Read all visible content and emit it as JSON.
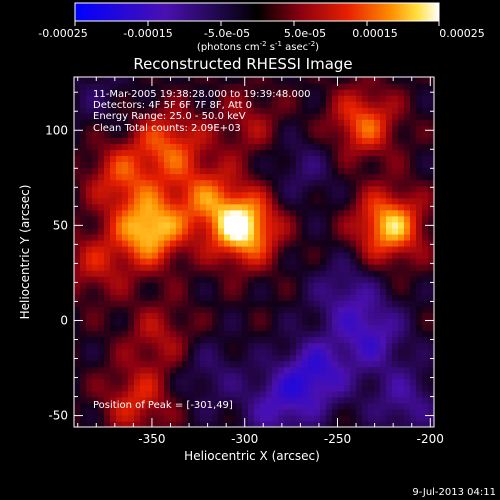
{
  "colorbar": {
    "ticks": [
      "-0.00025",
      "-0.00015",
      "-5.0e-05",
      "5.0e-05",
      "0.00015",
      "0.00025"
    ],
    "units_main": "(photons cm",
    "units_exp1": "-2",
    "units_mid": " s",
    "units_exp2": "-1",
    "units_end": " asec",
    "units_exp3": "-2",
    "units_close": ")",
    "range": [
      -0.00025,
      0.00025
    ]
  },
  "chart_data": {
    "type": "heatmap",
    "title": "Reconstructed RHESSI Image",
    "xlabel": "Heliocentric X (arcsec)",
    "ylabel": "Heliocentric Y (arcsec)",
    "xlim": [
      -392,
      -198
    ],
    "ylim": [
      -56,
      128
    ],
    "xticks": [
      -350,
      -300,
      -250,
      -200
    ],
    "yticks": [
      -50,
      0,
      50,
      100
    ],
    "xtick_labels": [
      "-350",
      "-300",
      "-250",
      "-200"
    ],
    "ytick_labels": [
      "-50",
      "0",
      "50",
      "100"
    ],
    "colormap": "blue-purple-red-orange-yellow-white",
    "peak": [
      -301,
      49
    ],
    "sources": [
      {
        "x": -351,
        "y": 48,
        "intensity": 0.00022
      },
      {
        "x": -367,
        "y": 76,
        "intensity": 0.00012
      },
      {
        "x": -341,
        "y": 93,
        "intensity": 0.00014
      },
      {
        "x": -301,
        "y": 49,
        "intensity": 0.00025
      },
      {
        "x": -322,
        "y": 66,
        "intensity": 0.00012
      },
      {
        "x": -222,
        "y": 50,
        "intensity": 0.00021
      },
      {
        "x": -236,
        "y": 104,
        "intensity": 0.00015
      },
      {
        "x": -298,
        "y": 104,
        "intensity": 7e-05
      },
      {
        "x": -380,
        "y": 30,
        "intensity": 9e-05
      },
      {
        "x": -346,
        "y": -8,
        "intensity": 8e-05
      },
      {
        "x": -358,
        "y": -42,
        "intensity": 0.00011
      },
      {
        "x": -262,
        "y": -28,
        "intensity": -0.00016
      },
      {
        "x": -232,
        "y": -8,
        "intensity": -0.00013
      },
      {
        "x": -282,
        "y": -45,
        "intensity": -0.00012
      },
      {
        "x": -246,
        "y": 14,
        "intensity": -9e-05
      },
      {
        "x": -214,
        "y": -42,
        "intensity": -0.0001
      },
      {
        "x": -318,
        "y": -28,
        "intensity": -6e-05
      },
      {
        "x": -268,
        "y": 80,
        "intensity": -6e-05
      },
      {
        "x": -380,
        "y": 118,
        "intensity": -4e-05
      }
    ]
  },
  "annotations": {
    "time": "11-Mar-2005 19:38:28.000 to 19:39:48.000",
    "detectors": "Detectors: 4F 5F 6F 7F 8F, Att 0",
    "energy": "Energy Range: 25.0 - 50.0 keV",
    "clean": "Clean    Total counts: 2.09E+03",
    "peak_label": "Position of Peak = [-301,49]"
  },
  "footer": {
    "timestamp": "9-Jul-2013 04:11"
  }
}
